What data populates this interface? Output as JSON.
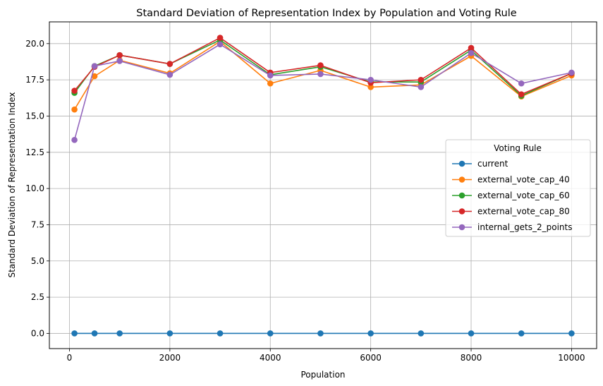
{
  "chart_data": {
    "type": "line",
    "title": "Standard Deviation of Representation Index by Population and Voting Rule",
    "xlabel": "Population",
    "ylabel": "Standard Deviation of Representation Index",
    "xlim": [
      -400,
      10500
    ],
    "ylim": [
      -1.05,
      21.5
    ],
    "xticks": [
      0,
      2000,
      4000,
      6000,
      8000,
      10000
    ],
    "yticks": [
      0.0,
      2.5,
      5.0,
      7.5,
      10.0,
      12.5,
      15.0,
      17.5,
      20.0
    ],
    "grid": true,
    "legend": {
      "title": "Voting Rule",
      "placement": "center-right"
    },
    "x": [
      100,
      500,
      1000,
      2000,
      3000,
      4000,
      5000,
      6000,
      7000,
      8000,
      9000,
      10000
    ],
    "series": [
      {
        "name": "current",
        "color": "#1f77b4",
        "values": [
          0,
          0,
          0,
          0,
          0,
          0,
          0,
          0,
          0,
          0,
          0,
          0
        ]
      },
      {
        "name": "external_vote_cap_40",
        "color": "#ff7f0e",
        "values": [
          15.45,
          17.75,
          18.85,
          17.95,
          20.15,
          17.25,
          18.15,
          17.0,
          17.15,
          19.15,
          16.35,
          17.8
        ]
      },
      {
        "name": "external_vote_cap_60",
        "color": "#2ca02c",
        "values": [
          16.6,
          18.45,
          19.2,
          18.6,
          20.25,
          17.85,
          18.4,
          17.35,
          17.35,
          19.55,
          16.4,
          17.95
        ]
      },
      {
        "name": "external_vote_cap_80",
        "color": "#d62728",
        "values": [
          16.75,
          18.4,
          19.2,
          18.6,
          20.4,
          18.0,
          18.5,
          17.3,
          17.5,
          19.7,
          16.5,
          17.95
        ]
      },
      {
        "name": "internal_gets_2_points",
        "color": "#9467bd",
        "values": [
          13.35,
          18.45,
          18.8,
          17.85,
          19.95,
          17.8,
          17.9,
          17.5,
          17.0,
          19.35,
          17.25,
          18.0
        ]
      }
    ]
  }
}
